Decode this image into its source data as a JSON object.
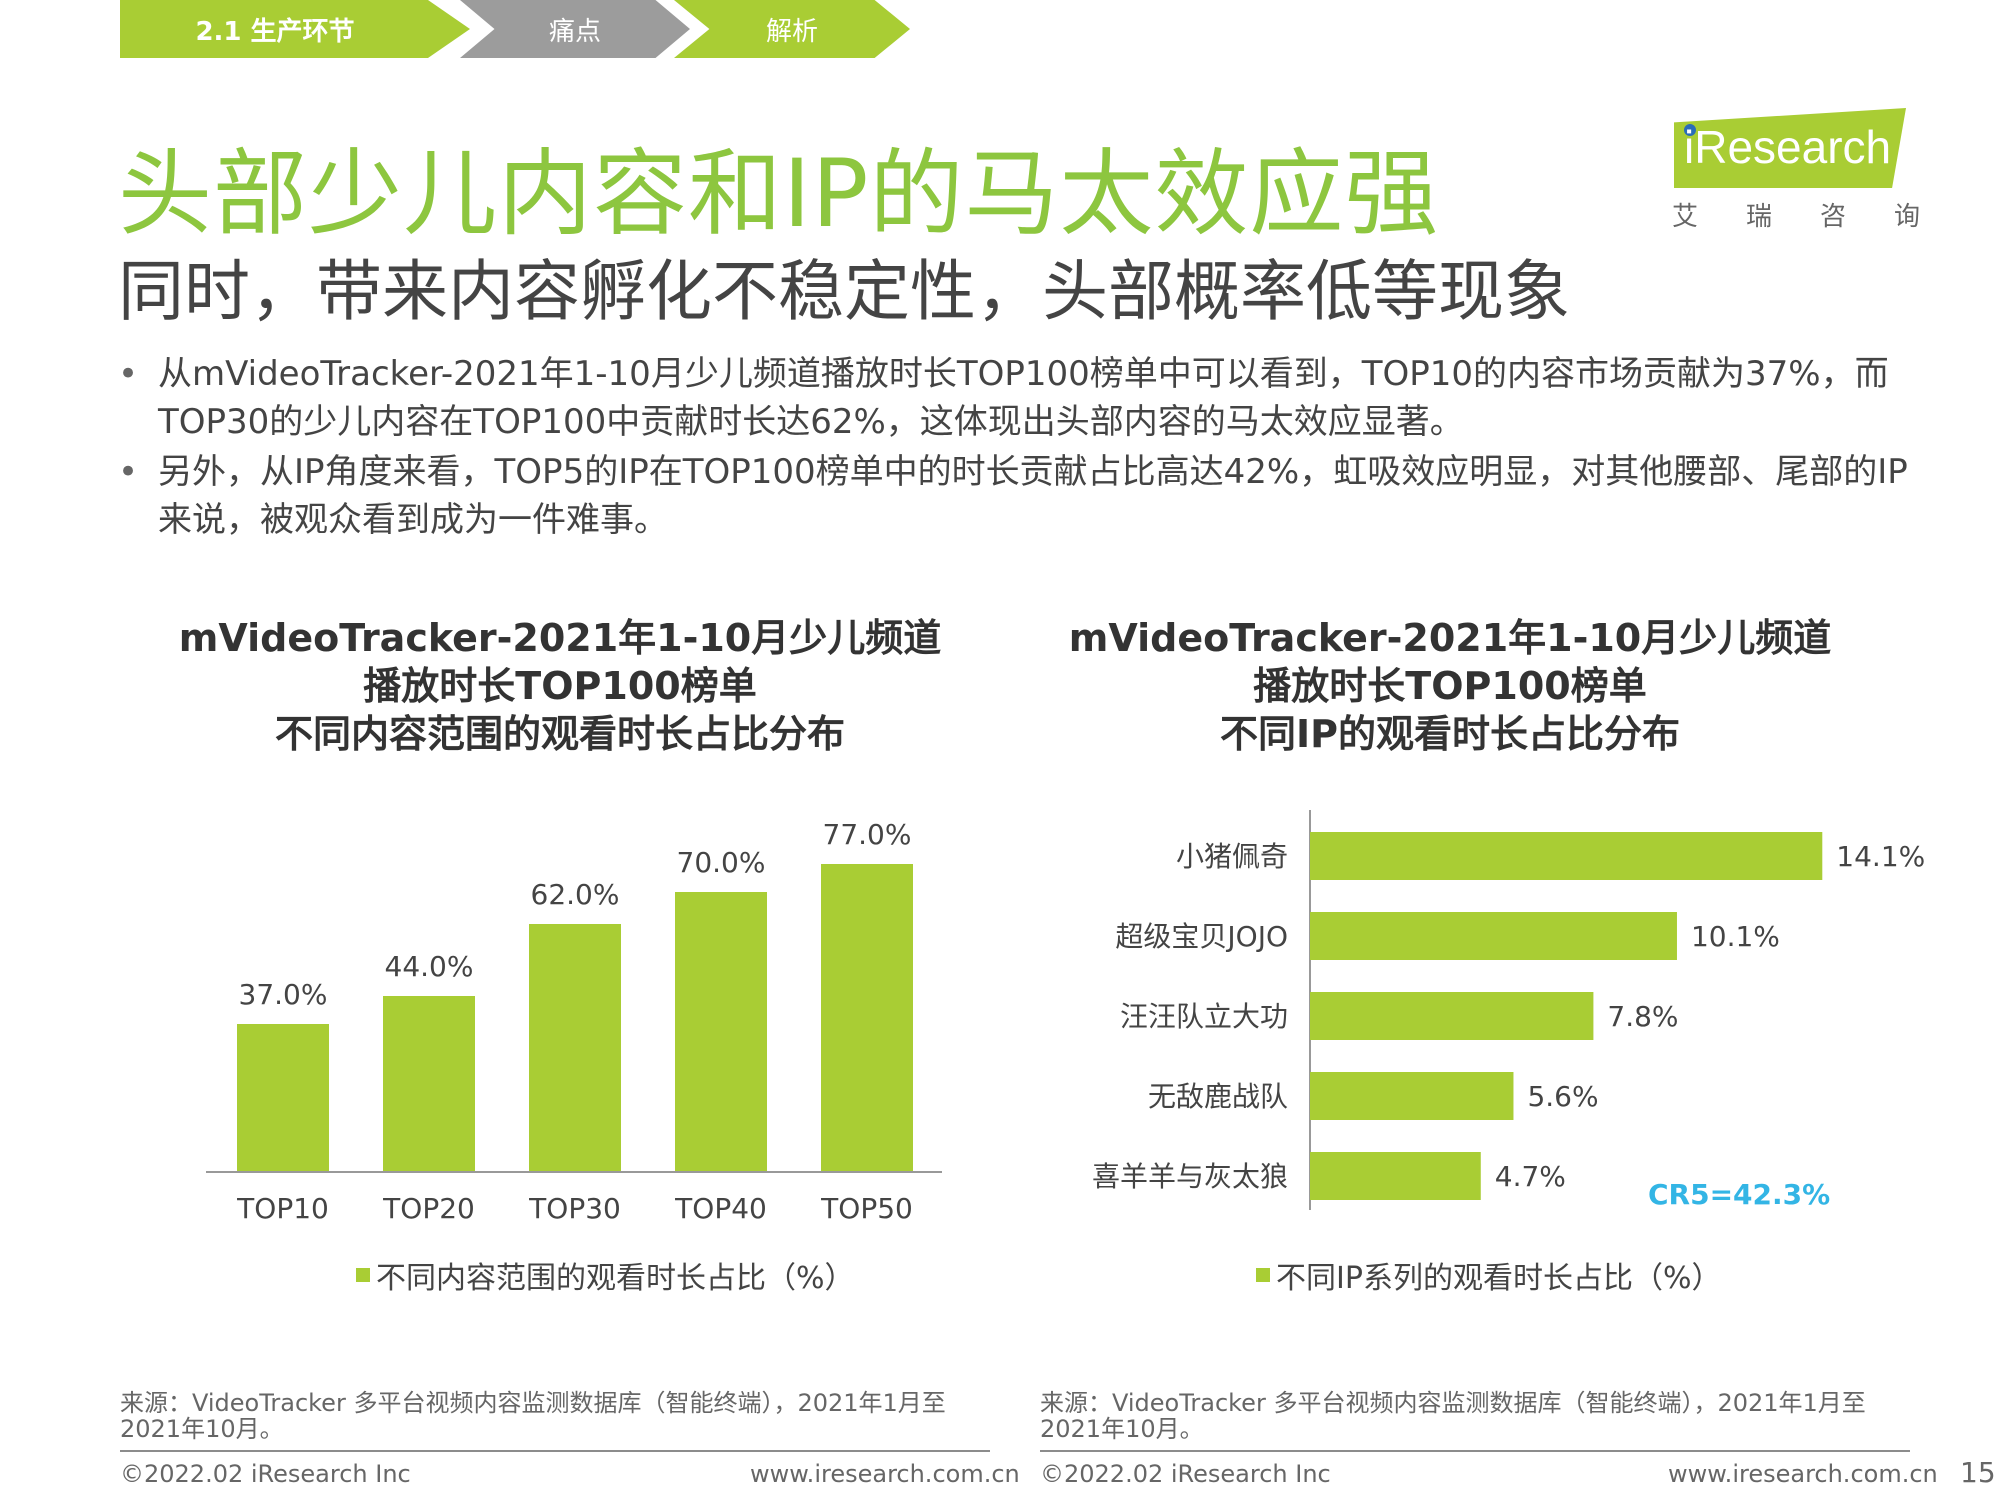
{
  "breadcrumb": [
    "2.1  生产环节",
    "痛点",
    "解析"
  ],
  "title": "头部少儿内容和IP的马太效应强",
  "subtitle": "同时，带来内容孵化不稳定性，头部概率低等现象",
  "logo": {
    "brand": "iResearch",
    "cn": [
      "艾",
      "瑞",
      "咨",
      "询"
    ]
  },
  "bullets": [
    "从mVideoTracker-2021年1-10月少儿频道播放时长TOP100榜单中可以看到，TOP10的内容市场贡献为37%，而TOP30的少儿内容在TOP100中贡献时长达62%，这体现出头部内容的马太效应显著。",
    "另外，从IP角度来看，TOP5的IP在TOP100榜单中的时长贡献占比高达42%，虹吸效应明显，对其他腰部、尾部的IP来说，被观众看到成为一件难事。"
  ],
  "chart_data": [
    {
      "type": "bar",
      "title_lines": [
        "mVideoTracker-2021年1-10月少儿频道",
        "播放时长TOP100榜单",
        "不同内容范围的观看时长占比分布"
      ],
      "categories": [
        "TOP10",
        "TOP20",
        "TOP30",
        "TOP40",
        "TOP50"
      ],
      "values": [
        37.0,
        44.0,
        62.0,
        70.0,
        77.0
      ],
      "value_labels": [
        "37.0%",
        "44.0%",
        "62.0%",
        "70.0%",
        "77.0%"
      ],
      "legend": "不同内容范围的观看时长占比（%）",
      "ylim": [
        0,
        80
      ],
      "color": "#a9cd34",
      "grid": false
    },
    {
      "type": "bar",
      "orientation": "horizontal",
      "title_lines": [
        "mVideoTracker-2021年1-10月少儿频道",
        "播放时长TOP100榜单",
        "不同IP的观看时长占比分布"
      ],
      "categories": [
        "小猪佩奇",
        "超级宝贝JOJO",
        "汪汪队立大功",
        "无敌鹿战队",
        "喜羊羊与灰太狼"
      ],
      "values": [
        14.1,
        10.1,
        7.8,
        5.6,
        4.7
      ],
      "value_labels": [
        "14.1%",
        "10.1%",
        "7.8%",
        "5.6%",
        "4.7%"
      ],
      "annotation": "CR5=42.3%",
      "legend": "不同IP系列的观看时长占比（%）",
      "xlim": [
        0,
        15
      ],
      "color": "#a9cd34",
      "annotation_color": "#33b5e5",
      "grid": false
    }
  ],
  "sources": {
    "left": "来源：VideoTracker 多平台视频内容监测数据库（智能终端），2021年1月至2021年10月。",
    "right": "来源：VideoTracker 多平台视频内容监测数据库（智能终端），2021年1月至2021年10月。"
  },
  "footer": {
    "copyright": "©2022.02 iResearch Inc",
    "website": "www.iresearch.com.cn",
    "page": "15"
  }
}
